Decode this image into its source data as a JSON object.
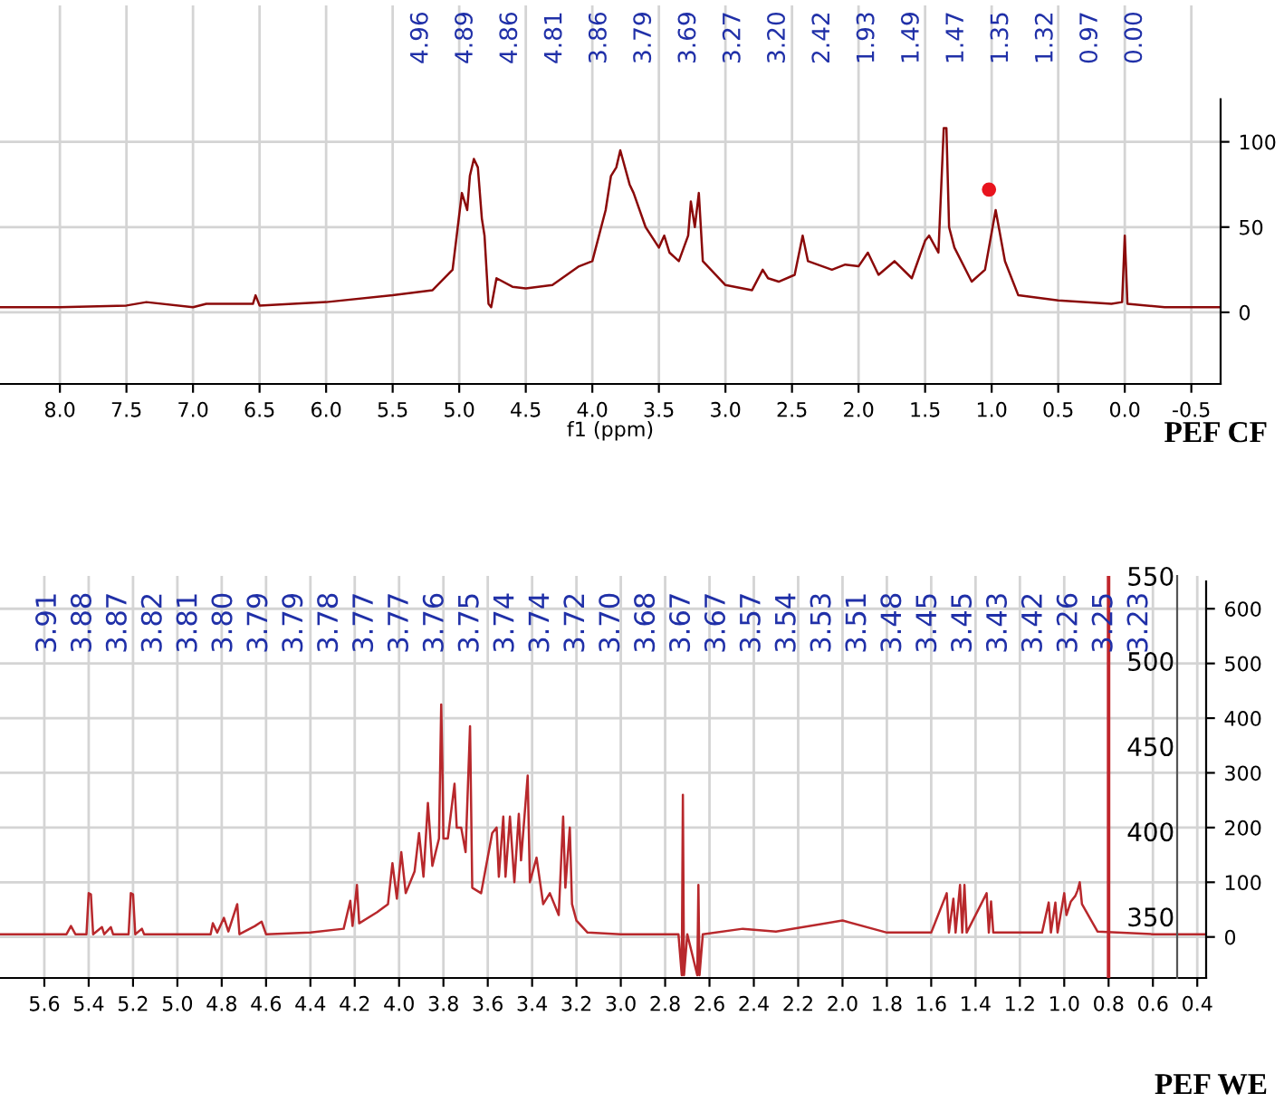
{
  "chart_data": [
    {
      "type": "line",
      "title": "PEF CF",
      "xlabel": "f1 (ppm)",
      "xlim": [
        8.45,
        -0.72
      ],
      "xticks": [
        {
          "value": 8,
          "label": "8.0"
        },
        7.5,
        {
          "value": 7,
          "label": "7.0"
        },
        6.5,
        {
          "value": 6,
          "label": "6.0"
        },
        5.5,
        {
          "value": 5,
          "label": "5.0"
        },
        4.5,
        {
          "value": 4,
          "label": "4.0"
        },
        3.5,
        {
          "value": 3,
          "label": "3.0"
        },
        2.5,
        {
          "value": 2,
          "label": "2.0"
        },
        1.5,
        {
          "value": 1,
          "label": "1.0"
        },
        0.5,
        {
          "value": 0,
          "label": "0.0"
        },
        -0.5
      ],
      "ylim": [
        -42,
        180
      ],
      "yticks": [
        0,
        50,
        100
      ],
      "grid": true,
      "series": [
        {
          "color": "#8b0a0a",
          "x": [
            8.45,
            8.0,
            7.5,
            7.35,
            7.0,
            6.9,
            6.55,
            6.53,
            6.5,
            6.0,
            5.5,
            5.2,
            5.05,
            4.98,
            4.94,
            4.92,
            4.89,
            4.86,
            4.83,
            4.81,
            4.78,
            4.76,
            4.72,
            4.6,
            4.5,
            4.3,
            4.1,
            4.0,
            3.9,
            3.86,
            3.82,
            3.79,
            3.72,
            3.69,
            3.6,
            3.5,
            3.46,
            3.42,
            3.35,
            3.28,
            3.26,
            3.23,
            3.2,
            3.17,
            3.0,
            2.8,
            2.72,
            2.68,
            2.6,
            2.48,
            2.42,
            2.38,
            2.2,
            2.1,
            2.0,
            1.93,
            1.85,
            1.73,
            1.6,
            1.5,
            1.47,
            1.4,
            1.36,
            1.34,
            1.32,
            1.28,
            1.15,
            1.05,
            0.97,
            0.9,
            0.8,
            0.5,
            0.1,
            0.02,
            0.0,
            -0.02,
            -0.3,
            -0.72
          ],
          "values": [
            3,
            3,
            4,
            6,
            3,
            5,
            5,
            10,
            4,
            6,
            10,
            13,
            25,
            70,
            60,
            80,
            90,
            85,
            55,
            45,
            5,
            3,
            20,
            15,
            14,
            16,
            27,
            30,
            60,
            80,
            85,
            95,
            75,
            70,
            50,
            38,
            45,
            35,
            30,
            45,
            65,
            50,
            70,
            30,
            16,
            13,
            25,
            20,
            18,
            22,
            45,
            30,
            25,
            28,
            27,
            35,
            22,
            30,
            20,
            42,
            45,
            35,
            108,
            108,
            50,
            38,
            18,
            25,
            60,
            30,
            10,
            7,
            5,
            6,
            45,
            5,
            3,
            3
          ]
        },
        {
          "type": "scatter",
          "color": "#e8141e",
          "x": [
            1.02
          ],
          "values": [
            72
          ]
        }
      ],
      "annotations": [
        "4.96",
        "4.89",
        "4.86",
        "4.81",
        "3.86",
        "3.79",
        "3.69",
        "3.27",
        "3.20",
        "2.42",
        "1.93",
        "1.49",
        "1.47",
        "1.35",
        "1.32",
        "0.97",
        "0.00"
      ]
    },
    {
      "type": "line",
      "title": "PEF WE",
      "xlim": [
        5.8,
        0.36
      ],
      "xticks": [
        5.6,
        5.4,
        5.2,
        {
          "value": 5,
          "label": "5.0"
        },
        4.8,
        4.6,
        4.4,
        4.2,
        {
          "value": 4,
          "label": "4.0"
        },
        3.8,
        3.6,
        3.4,
        3.2,
        {
          "value": 3,
          "label": "3.0"
        },
        2.8,
        2.6,
        2.4,
        2.2,
        {
          "value": 2,
          "label": "2.0"
        },
        1.8,
        1.6,
        1.4,
        1.2,
        {
          "value": 1,
          "label": "1.0"
        },
        0.8,
        0.6,
        0.4
      ],
      "ylim": [
        -75,
        660
      ],
      "yticks": [
        0,
        100,
        200,
        300,
        400,
        500,
        600
      ],
      "y2lim": [
        314,
        550
      ],
      "y2ticks": [
        350,
        400,
        450,
        500,
        550
      ],
      "grid": true,
      "ref_lines": [
        {
          "axis": "x",
          "value": 0.8,
          "color": "#c0262c"
        }
      ],
      "series": [
        {
          "color": "#b8282c",
          "x": [
            5.8,
            5.5,
            5.48,
            5.46,
            5.41,
            5.4,
            5.39,
            5.38,
            5.34,
            5.33,
            5.3,
            5.29,
            5.22,
            5.21,
            5.2,
            5.19,
            5.16,
            5.15,
            4.85,
            4.84,
            4.82,
            4.79,
            4.77,
            4.73,
            4.72,
            4.65,
            4.62,
            4.6,
            4.4,
            4.25,
            4.22,
            4.21,
            4.19,
            4.18,
            4.1,
            4.05,
            4.03,
            4.01,
            3.99,
            3.97,
            3.93,
            3.91,
            3.89,
            3.87,
            3.85,
            3.82,
            3.81,
            3.805,
            3.8,
            3.78,
            3.75,
            3.74,
            3.72,
            3.7,
            3.68,
            3.67,
            3.63,
            3.58,
            3.56,
            3.55,
            3.53,
            3.52,
            3.5,
            3.48,
            3.46,
            3.45,
            3.42,
            3.41,
            3.38,
            3.35,
            3.32,
            3.28,
            3.26,
            3.25,
            3.23,
            3.22,
            3.2,
            3.15,
            3.0,
            2.74,
            2.725,
            2.72,
            2.715,
            2.7,
            2.655,
            2.65,
            2.645,
            2.63,
            2.45,
            2.3,
            2.0,
            1.8,
            1.6,
            1.53,
            1.52,
            1.5,
            1.49,
            1.47,
            1.46,
            1.45,
            1.44,
            1.35,
            1.34,
            1.33,
            1.32,
            1.1,
            1.07,
            1.06,
            1.04,
            1.03,
            1.0,
            0.99,
            0.97,
            0.95,
            0.94,
            0.93,
            0.92,
            0.85,
            0.6,
            0.36
          ],
          "values": [
            5,
            5,
            20,
            5,
            5,
            80,
            78,
            5,
            18,
            5,
            18,
            5,
            5,
            80,
            78,
            5,
            15,
            5,
            5,
            25,
            8,
            35,
            10,
            60,
            5,
            20,
            28,
            5,
            8,
            15,
            66,
            20,
            95,
            25,
            45,
            60,
            135,
            70,
            155,
            80,
            120,
            190,
            110,
            245,
            130,
            180,
            425,
            320,
            180,
            180,
            280,
            200,
            200,
            155,
            385,
            90,
            80,
            190,
            200,
            110,
            220,
            110,
            220,
            100,
            225,
            140,
            295,
            100,
            145,
            60,
            80,
            40,
            220,
            90,
            200,
            60,
            30,
            8,
            5,
            5,
            -70,
            260,
            -70,
            5,
            -70,
            95,
            -70,
            5,
            15,
            10,
            30,
            8,
            8,
            80,
            8,
            70,
            8,
            95,
            8,
            95,
            8,
            80,
            8,
            65,
            8,
            8,
            63,
            8,
            63,
            8,
            80,
            40,
            65,
            75,
            85,
            100,
            60,
            10,
            5,
            5
          ]
        }
      ],
      "annotations": [
        "3.91",
        "3.88",
        "3.87",
        "3.82",
        "3.81",
        "3.80",
        "3.79",
        "3.79",
        "3.78",
        "3.77",
        "3.77",
        "3.76",
        "3.75",
        "3.74",
        "3.74",
        "3.72",
        "3.70",
        "3.68",
        "3.67",
        "3.67",
        "3.57",
        "3.54",
        "3.53",
        "3.51",
        "3.48",
        "3.45",
        "3.45",
        "3.43",
        "3.42",
        "3.26",
        "3.25",
        "3.23"
      ]
    }
  ]
}
